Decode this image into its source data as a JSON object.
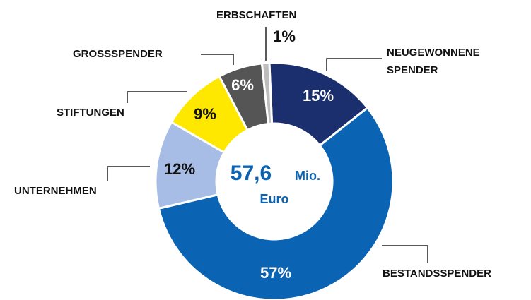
{
  "chart_data": {
    "type": "donut",
    "categories": [
      "NEUGEWONNENE SPENDER",
      "BESTANDSSPENDER",
      "UNTERNEHMEN",
      "STIFTUNGEN",
      "GROSSSPENDER",
      "ERBSCHAFTEN"
    ],
    "values": [
      15,
      57,
      12,
      9,
      6,
      1
    ],
    "value_labels": [
      "15%",
      "57%",
      "12%",
      "9%",
      "6%",
      "1%"
    ],
    "colors": [
      "#1b2f6e",
      "#0b63b3",
      "#a7bde6",
      "#ffe800",
      "#555555",
      "#bdbdbd"
    ],
    "center_value": "57,6",
    "center_unit": "Mio.",
    "center_label": "Euro"
  }
}
